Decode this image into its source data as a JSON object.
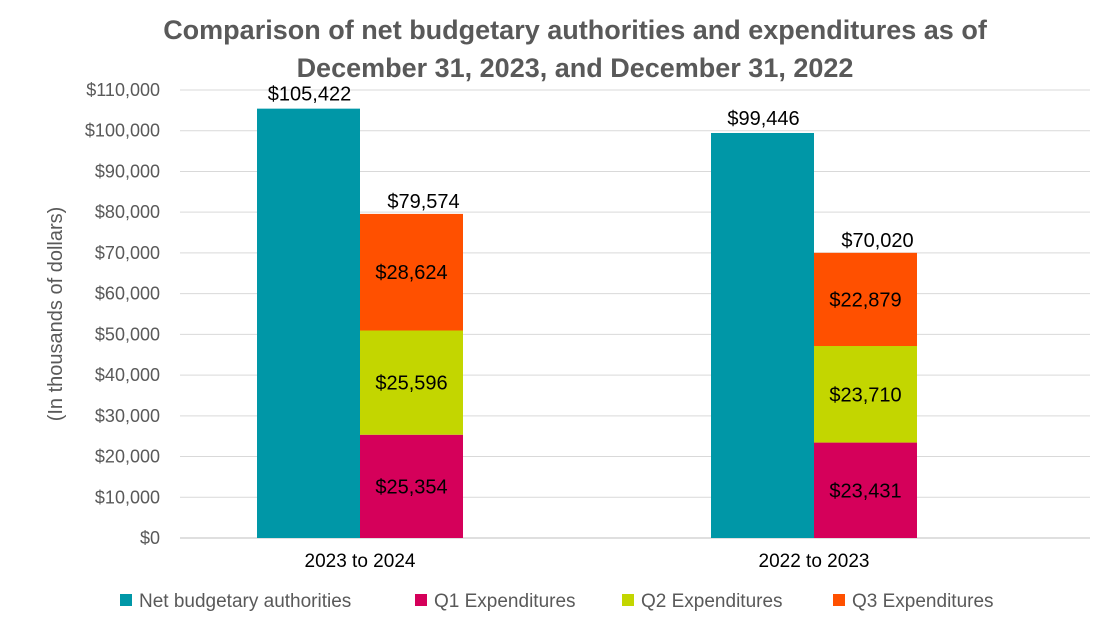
{
  "chart_data": {
    "type": "bar",
    "stacked_groups": true,
    "title_lines": [
      "Comparison of net budgetary authorities and expenditures as of",
      "December 31, 2023, and December 31, 2022"
    ],
    "ylabel": "(In thousands of dollars)",
    "xlabel": "",
    "ylim": [
      0,
      110000
    ],
    "yticks": [
      {
        "value": 0,
        "label": "$0"
      },
      {
        "value": 10000,
        "label": "$10,000"
      },
      {
        "value": 20000,
        "label": "$20,000"
      },
      {
        "value": 30000,
        "label": "$30,000"
      },
      {
        "value": 40000,
        "label": "$40,000"
      },
      {
        "value": 50000,
        "label": "$50,000"
      },
      {
        "value": 60000,
        "label": "$60,000"
      },
      {
        "value": 70000,
        "label": "$70,000"
      },
      {
        "value": 80000,
        "label": "$80,000"
      },
      {
        "value": 90000,
        "label": "$90,000"
      },
      {
        "value": 100000,
        "label": "$100,000"
      },
      {
        "value": 110000,
        "label": "$110,000"
      }
    ],
    "grid": true,
    "legend_position": "bottom",
    "categories": [
      "2023 to 2024",
      "2022 to 2023"
    ],
    "series": [
      {
        "name": "Net budgetary authorities",
        "color": "#0097A7",
        "stack": "authorities",
        "values": [
          105422,
          99446
        ],
        "labels": [
          "$105,422",
          "$99,446"
        ]
      },
      {
        "name": "Q1 Expenditures",
        "color": "#D5005A",
        "stack": "expenditures",
        "values": [
          25354,
          23431
        ],
        "labels": [
          "$25,354",
          "$23,431"
        ]
      },
      {
        "name": "Q2 Expenditures",
        "color": "#C3D600",
        "stack": "expenditures",
        "values": [
          25596,
          23710
        ],
        "labels": [
          "$25,596",
          "$23,710"
        ]
      },
      {
        "name": "Q3 Expenditures",
        "color": "#FF5000",
        "stack": "expenditures",
        "values": [
          28624,
          22879
        ],
        "labels": [
          "$28,624",
          "$22,879"
        ]
      }
    ],
    "stack_totals": {
      "expenditures": {
        "values": [
          79574,
          70020
        ],
        "labels": [
          "$79,574",
          "$70,020"
        ]
      }
    }
  }
}
